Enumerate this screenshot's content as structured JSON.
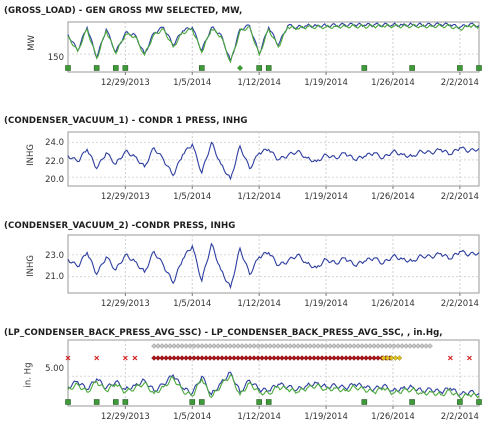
{
  "chart_data": [
    {
      "type": "line",
      "title": "(GROSS_LOAD) - GEN GROSS MW SELECTED, MW,",
      "ylabel": "MW",
      "yticks": [
        "150"
      ],
      "ylim": [
        100,
        240
      ],
      "xlim": [
        "2013-12-23",
        "2014-02-04"
      ],
      "x_ticks": [
        "12/29/2013",
        "1/5/2014",
        "1/12/2014",
        "1/19/2014",
        "1/26/2014",
        "2/2/2014"
      ],
      "series": [
        {
          "color": "#2e3fa0",
          "x": [
            "2013-12-23",
            "2013-12-24",
            "2013-12-25",
            "2013-12-26",
            "2013-12-27",
            "2013-12-28",
            "2013-12-29",
            "2013-12-30",
            "2013-12-31",
            "2014-01-01",
            "2014-01-02",
            "2014-01-03",
            "2014-01-04",
            "2014-01-05",
            "2014-01-06",
            "2014-01-07",
            "2014-01-08",
            "2014-01-09",
            "2014-01-10",
            "2014-01-11",
            "2014-01-12",
            "2014-01-13",
            "2014-01-14",
            "2014-01-15",
            "2014-01-16",
            "2014-01-17",
            "2014-01-18",
            "2014-01-19",
            "2014-01-20",
            "2014-01-21",
            "2014-01-22",
            "2014-01-23",
            "2014-01-24",
            "2014-01-25",
            "2014-01-26",
            "2014-01-27",
            "2014-01-28",
            "2014-01-29",
            "2014-01-30",
            "2014-01-31",
            "2014-02-01",
            "2014-02-02",
            "2014-02-03",
            "2014-02-04"
          ],
          "values": [
            205,
            160,
            225,
            140,
            220,
            155,
            210,
            205,
            150,
            210,
            225,
            175,
            215,
            225,
            160,
            225,
            205,
            130,
            220,
            230,
            150,
            225,
            175,
            230,
            225,
            230,
            230,
            230,
            231,
            232,
            232,
            231,
            232,
            232,
            232,
            232,
            233,
            232,
            232,
            233,
            232,
            225,
            233,
            230
          ]
        },
        {
          "color": "#4caa3c",
          "x": [
            "2013-12-23",
            "2013-12-24",
            "2013-12-25",
            "2013-12-26",
            "2013-12-27",
            "2013-12-28",
            "2013-12-29",
            "2013-12-30",
            "2013-12-31",
            "2014-01-01",
            "2014-01-02",
            "2014-01-03",
            "2014-01-04",
            "2014-01-05",
            "2014-01-06",
            "2014-01-07",
            "2014-01-08",
            "2014-01-09",
            "2014-01-10",
            "2014-01-11",
            "2014-01-12",
            "2014-01-13",
            "2014-01-14",
            "2014-01-15",
            "2014-01-16",
            "2014-01-17",
            "2014-01-18",
            "2014-01-19",
            "2014-01-20",
            "2014-01-21",
            "2014-01-22",
            "2014-01-23",
            "2014-01-24",
            "2014-01-25",
            "2014-01-26",
            "2014-01-27",
            "2014-01-28",
            "2014-01-29",
            "2014-01-30",
            "2014-01-31",
            "2014-02-01",
            "2014-02-02",
            "2014-02-03",
            "2014-02-04"
          ],
          "values": [
            200,
            158,
            220,
            138,
            215,
            152,
            205,
            200,
            148,
            205,
            220,
            170,
            210,
            220,
            155,
            220,
            200,
            128,
            215,
            226,
            148,
            220,
            170,
            226,
            221,
            226,
            226,
            226,
            227,
            228,
            228,
            227,
            228,
            228,
            228,
            228,
            229,
            228,
            228,
            229,
            228,
            220,
            229,
            226
          ]
        }
      ],
      "event_markers": {
        "green_squares": [
          "2013-12-23",
          "2013-12-26",
          "2013-12-28",
          "2013-12-29",
          "2014-01-06",
          "2014-01-12",
          "2014-01-13",
          "2014-01-23",
          "2014-01-28",
          "2014-02-02",
          "2014-02-04"
        ],
        "green_diamonds": [
          "2014-01-10"
        ]
      }
    },
    {
      "type": "line",
      "title": "(CONDENSER_VACUUM_1) - CONDR 1 PRESS, INHG",
      "ylabel": "INHG",
      "yticks": [
        "24.0",
        "22.0",
        "20.0"
      ],
      "ylim": [
        19.0,
        25.2
      ],
      "xlim": [
        "2013-12-23",
        "2014-02-04"
      ],
      "x_ticks": [
        "12/29/2013",
        "1/5/2014",
        "1/12/2014",
        "1/19/2014",
        "1/26/2014",
        "2/2/2014"
      ],
      "series": [
        {
          "color": "#2e3fa0",
          "x": [
            "2013-12-23",
            "2013-12-24",
            "2013-12-25",
            "2013-12-26",
            "2013-12-27",
            "2013-12-28",
            "2013-12-29",
            "2013-12-30",
            "2013-12-31",
            "2014-01-01",
            "2014-01-02",
            "2014-01-03",
            "2014-01-04",
            "2014-01-05",
            "2014-01-06",
            "2014-01-07",
            "2014-01-08",
            "2014-01-09",
            "2014-01-10",
            "2014-01-11",
            "2014-01-12",
            "2014-01-13",
            "2014-01-14",
            "2014-01-15",
            "2014-01-16",
            "2014-01-17",
            "2014-01-18",
            "2014-01-19",
            "2014-01-20",
            "2014-01-21",
            "2014-01-22",
            "2014-01-23",
            "2014-01-24",
            "2014-01-25",
            "2014-01-26",
            "2014-01-27",
            "2014-01-28",
            "2014-01-29",
            "2014-01-30",
            "2014-01-31",
            "2014-02-01",
            "2014-02-02",
            "2014-02-03",
            "2014-02-04"
          ],
          "values": [
            22.5,
            21.8,
            23.2,
            21.0,
            22.8,
            21.5,
            23.0,
            22.4,
            21.2,
            23.4,
            22.0,
            20.2,
            22.6,
            23.8,
            20.5,
            24.0,
            21.5,
            19.8,
            23.6,
            21.0,
            22.8,
            23.2,
            22.0,
            22.5,
            23.0,
            22.2,
            21.8,
            22.6,
            22.2,
            22.8,
            22.0,
            22.4,
            22.8,
            22.2,
            23.0,
            22.6,
            22.4,
            23.0,
            22.8,
            23.2,
            22.6,
            23.4,
            23.0,
            23.3
          ]
        }
      ]
    },
    {
      "type": "line",
      "title": "(CONDENSER_VACUUM_2) -CONDR PRESS, INHG",
      "ylabel": "INHG",
      "yticks": [
        "23.0",
        "21.0"
      ],
      "ylim": [
        19.5,
        24.8
      ],
      "xlim": [
        "2013-12-23",
        "2014-02-04"
      ],
      "x_ticks": [
        "12/29/2013",
        "1/5/2014",
        "1/12/2014",
        "1/19/2014",
        "1/26/2014",
        "2/2/2014"
      ],
      "series": [
        {
          "color": "#2e3fa0",
          "x": [
            "2013-12-23",
            "2013-12-24",
            "2013-12-25",
            "2013-12-26",
            "2013-12-27",
            "2013-12-28",
            "2013-12-29",
            "2013-12-30",
            "2013-12-31",
            "2014-01-01",
            "2014-01-02",
            "2014-01-03",
            "2014-01-04",
            "2014-01-05",
            "2014-01-06",
            "2014-01-07",
            "2014-01-08",
            "2014-01-09",
            "2014-01-10",
            "2014-01-11",
            "2014-01-12",
            "2014-01-13",
            "2014-01-14",
            "2014-01-15",
            "2014-01-16",
            "2014-01-17",
            "2014-01-18",
            "2014-01-19",
            "2014-01-20",
            "2014-01-21",
            "2014-01-22",
            "2014-01-23",
            "2014-01-24",
            "2014-01-25",
            "2014-01-26",
            "2014-01-27",
            "2014-01-28",
            "2014-01-29",
            "2014-01-30",
            "2014-01-31",
            "2014-02-01",
            "2014-02-02",
            "2014-02-03",
            "2014-02-04"
          ],
          "values": [
            22.6,
            21.9,
            23.2,
            21.2,
            22.8,
            21.6,
            23.0,
            22.4,
            21.4,
            23.3,
            22.0,
            20.4,
            22.6,
            23.8,
            20.6,
            24.0,
            21.6,
            20.0,
            23.6,
            21.2,
            22.8,
            23.2,
            22.0,
            22.4,
            23.0,
            22.2,
            21.8,
            22.6,
            22.2,
            22.7,
            22.0,
            22.4,
            22.7,
            22.2,
            22.9,
            22.6,
            22.4,
            22.9,
            22.8,
            23.1,
            22.6,
            23.3,
            23.0,
            23.2
          ]
        }
      ]
    },
    {
      "type": "line",
      "title": "(LP_CONDENSER_BACK_PRESS_AVG_SSC) - LP_CONDENSER_BACK_PRESS_AVG_SSC, , in.Hg,",
      "ylabel": "in. Hg",
      "yticks": [
        "5.00"
      ],
      "ylim": [
        0.5,
        10.5
      ],
      "xlim": [
        "2013-12-23",
        "2014-02-04"
      ],
      "x_ticks": [
        "12/29/2013",
        "1/5/2014",
        "1/12/2014",
        "1/19/2014",
        "1/26/2014",
        "2/2/2014"
      ],
      "series": [
        {
          "color": "#2e3fa0",
          "x": [
            "2013-12-23",
            "2013-12-24",
            "2013-12-25",
            "2013-12-26",
            "2013-12-27",
            "2013-12-28",
            "2013-12-29",
            "2013-12-30",
            "2013-12-31",
            "2014-01-01",
            "2014-01-02",
            "2014-01-03",
            "2014-01-04",
            "2014-01-05",
            "2014-01-06",
            "2014-01-07",
            "2014-01-08",
            "2014-01-09",
            "2014-01-10",
            "2014-01-11",
            "2014-01-12",
            "2014-01-13",
            "2014-01-14",
            "2014-01-15",
            "2014-01-16",
            "2014-01-17",
            "2014-01-18",
            "2014-01-19",
            "2014-01-20",
            "2014-01-21",
            "2014-01-22",
            "2014-01-23",
            "2014-01-24",
            "2014-01-25",
            "2014-01-26",
            "2014-01-27",
            "2014-01-28",
            "2014-01-29",
            "2014-01-30",
            "2014-01-31",
            "2014-02-01",
            "2014-02-02",
            "2014-02-03",
            "2014-02-04"
          ],
          "values": [
            3.4,
            4.2,
            3.0,
            4.6,
            3.2,
            4.2,
            3.0,
            3.6,
            4.4,
            2.8,
            3.8,
            5.2,
            3.2,
            2.4,
            5.0,
            2.2,
            4.0,
            5.6,
            2.6,
            4.4,
            3.0,
            2.8,
            3.8,
            3.4,
            3.0,
            3.6,
            4.0,
            3.4,
            3.6,
            3.2,
            3.8,
            3.4,
            3.0,
            3.6,
            2.8,
            3.2,
            3.4,
            2.8,
            3.0,
            2.6,
            3.2,
            2.2,
            2.6,
            2.4
          ]
        },
        {
          "color": "#4caa3c",
          "x": [
            "2013-12-23",
            "2013-12-24",
            "2013-12-25",
            "2013-12-26",
            "2013-12-27",
            "2013-12-28",
            "2013-12-29",
            "2013-12-30",
            "2013-12-31",
            "2014-01-01",
            "2014-01-02",
            "2014-01-03",
            "2014-01-04",
            "2014-01-05",
            "2014-01-06",
            "2014-01-07",
            "2014-01-08",
            "2014-01-09",
            "2014-01-10",
            "2014-01-11",
            "2014-01-12",
            "2014-01-13",
            "2014-01-14",
            "2014-01-15",
            "2014-01-16",
            "2014-01-17",
            "2014-01-18",
            "2014-01-19",
            "2014-01-20",
            "2014-01-21",
            "2014-01-22",
            "2014-01-23",
            "2014-01-24",
            "2014-01-25",
            "2014-01-26",
            "2014-01-27",
            "2014-01-28",
            "2014-01-29",
            "2014-01-30",
            "2014-01-31",
            "2014-02-01",
            "2014-02-02",
            "2014-02-03",
            "2014-02-04"
          ],
          "values": [
            3.0,
            3.8,
            2.6,
            4.2,
            2.8,
            3.8,
            2.6,
            3.2,
            4.0,
            2.4,
            3.4,
            4.8,
            2.8,
            2.0,
            4.6,
            1.8,
            3.6,
            5.2,
            2.2,
            4.0,
            2.6,
            2.4,
            3.4,
            3.0,
            2.6,
            3.2,
            3.6,
            3.0,
            3.2,
            2.8,
            3.4,
            3.0,
            2.6,
            3.2,
            2.4,
            2.8,
            3.0,
            2.4,
            2.6,
            2.2,
            2.8,
            1.8,
            2.2,
            2.0
          ]
        }
      ],
      "event_markers": {
        "green_squares": [
          "2013-12-23",
          "2013-12-26",
          "2013-12-28",
          "2013-12-29",
          "2014-01-05",
          "2014-01-06",
          "2014-01-12",
          "2014-01-13",
          "2014-01-23",
          "2014-01-28",
          "2014-02-02",
          "2014-02-04"
        ],
        "red_x": [
          "2013-12-23",
          "2013-12-26",
          "2013-12-29",
          "2013-12-30",
          "2014-02-01",
          "2014-02-03"
        ],
        "gray_diamond_range": [
          "2014-01-01",
          "2014-01-30"
        ],
        "red_diamond_range": [
          "2014-01-01",
          "2014-01-26"
        ],
        "yellow_diamond_range": [
          "2014-01-25",
          "2014-01-27"
        ]
      }
    }
  ]
}
